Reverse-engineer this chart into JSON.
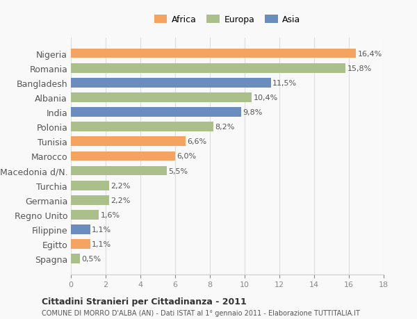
{
  "countries": [
    "Nigeria",
    "Romania",
    "Bangladesh",
    "Albania",
    "India",
    "Polonia",
    "Tunisia",
    "Marocco",
    "Macedonia d/N.",
    "Turchia",
    "Germania",
    "Regno Unito",
    "Filippine",
    "Egitto",
    "Spagna"
  ],
  "values": [
    16.4,
    15.8,
    11.5,
    10.4,
    9.8,
    8.2,
    6.6,
    6.0,
    5.5,
    2.2,
    2.2,
    1.6,
    1.1,
    1.1,
    0.5
  ],
  "labels": [
    "16,4%",
    "15,8%",
    "11,5%",
    "10,4%",
    "9,8%",
    "8,2%",
    "6,6%",
    "6,0%",
    "5,5%",
    "2,2%",
    "2,2%",
    "1,6%",
    "1,1%",
    "1,1%",
    "0,5%"
  ],
  "continents": [
    "Africa",
    "Europa",
    "Asia",
    "Europa",
    "Asia",
    "Europa",
    "Africa",
    "Africa",
    "Europa",
    "Europa",
    "Europa",
    "Europa",
    "Asia",
    "Africa",
    "Europa"
  ],
  "colors": {
    "Africa": "#F4A460",
    "Europa": "#AABF8A",
    "Asia": "#6B8CBE"
  },
  "legend_colors": {
    "Africa": "#F4A460",
    "Europa": "#AABF8A",
    "Asia": "#6B8CBE"
  },
  "xlim": [
    0,
    18
  ],
  "xticks": [
    0,
    2,
    4,
    6,
    8,
    10,
    12,
    14,
    16,
    18
  ],
  "title": "Cittadini Stranieri per Cittadinanza - 2011",
  "subtitle": "COMUNE DI MORRO D'ALBA (AN) - Dati ISTAT al 1° gennaio 2011 - Elaborazione TUTTITALIA.IT",
  "background_color": "#f9f9f9",
  "bar_height": 0.65
}
